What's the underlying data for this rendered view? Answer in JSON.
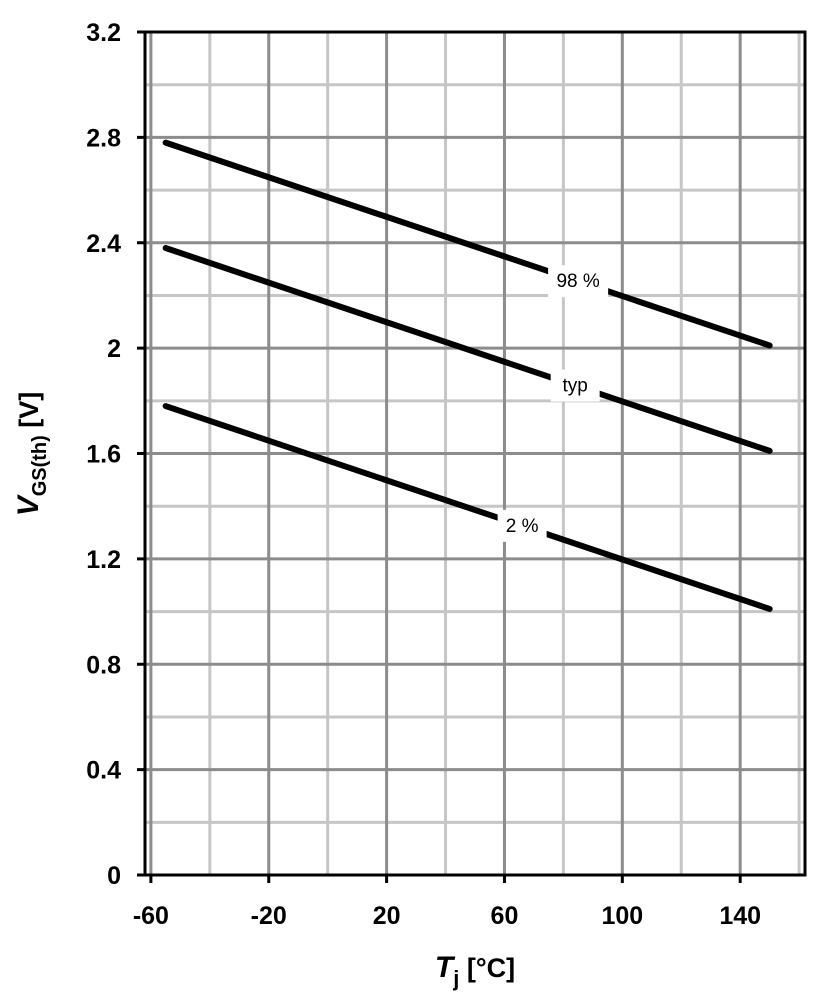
{
  "chart_data": {
    "type": "line",
    "xlabel": {
      "symbol": "T",
      "subscript": "j",
      "unit": " [°C]"
    },
    "ylabel": {
      "symbol": "V",
      "subscript": "GS(th)",
      "unit": " [V]"
    },
    "xlim": [
      -62,
      162
    ],
    "ylim": [
      0,
      3.2
    ],
    "x_ticks": [
      -60,
      -20,
      20,
      60,
      100,
      140
    ],
    "x_tick_labels": [
      "-60",
      "-20",
      "20",
      "60",
      "100",
      "140"
    ],
    "x_minor_grid": [
      -40,
      0,
      40,
      80,
      120,
      160
    ],
    "y_ticks": [
      0,
      0.4,
      0.8,
      1.2,
      1.6,
      2,
      2.4,
      2.8,
      3.2
    ],
    "y_tick_labels": [
      "0",
      "0.4",
      "0.8",
      "1.2",
      "1.6",
      "2",
      "2.4",
      "2.8",
      "3.2"
    ],
    "y_minor_grid": [
      0.2,
      0.6,
      1.0,
      1.4,
      1.8,
      2.2,
      2.6,
      3.0
    ],
    "grid": true,
    "series": [
      {
        "name": "98 %",
        "x": [
          -55,
          150
        ],
        "y": [
          2.78,
          2.01
        ],
        "label_at": 85
      },
      {
        "name": "typ",
        "x": [
          -55,
          150
        ],
        "y": [
          2.38,
          1.61
        ],
        "label_at": 84
      },
      {
        "name": "2 %",
        "x": [
          -55,
          150
        ],
        "y": [
          1.78,
          1.01
        ],
        "label_at": 66
      }
    ],
    "colors": {
      "line": "#000000",
      "major_grid": "#8c8c8c",
      "minor_grid": "#c6c6c6"
    }
  }
}
